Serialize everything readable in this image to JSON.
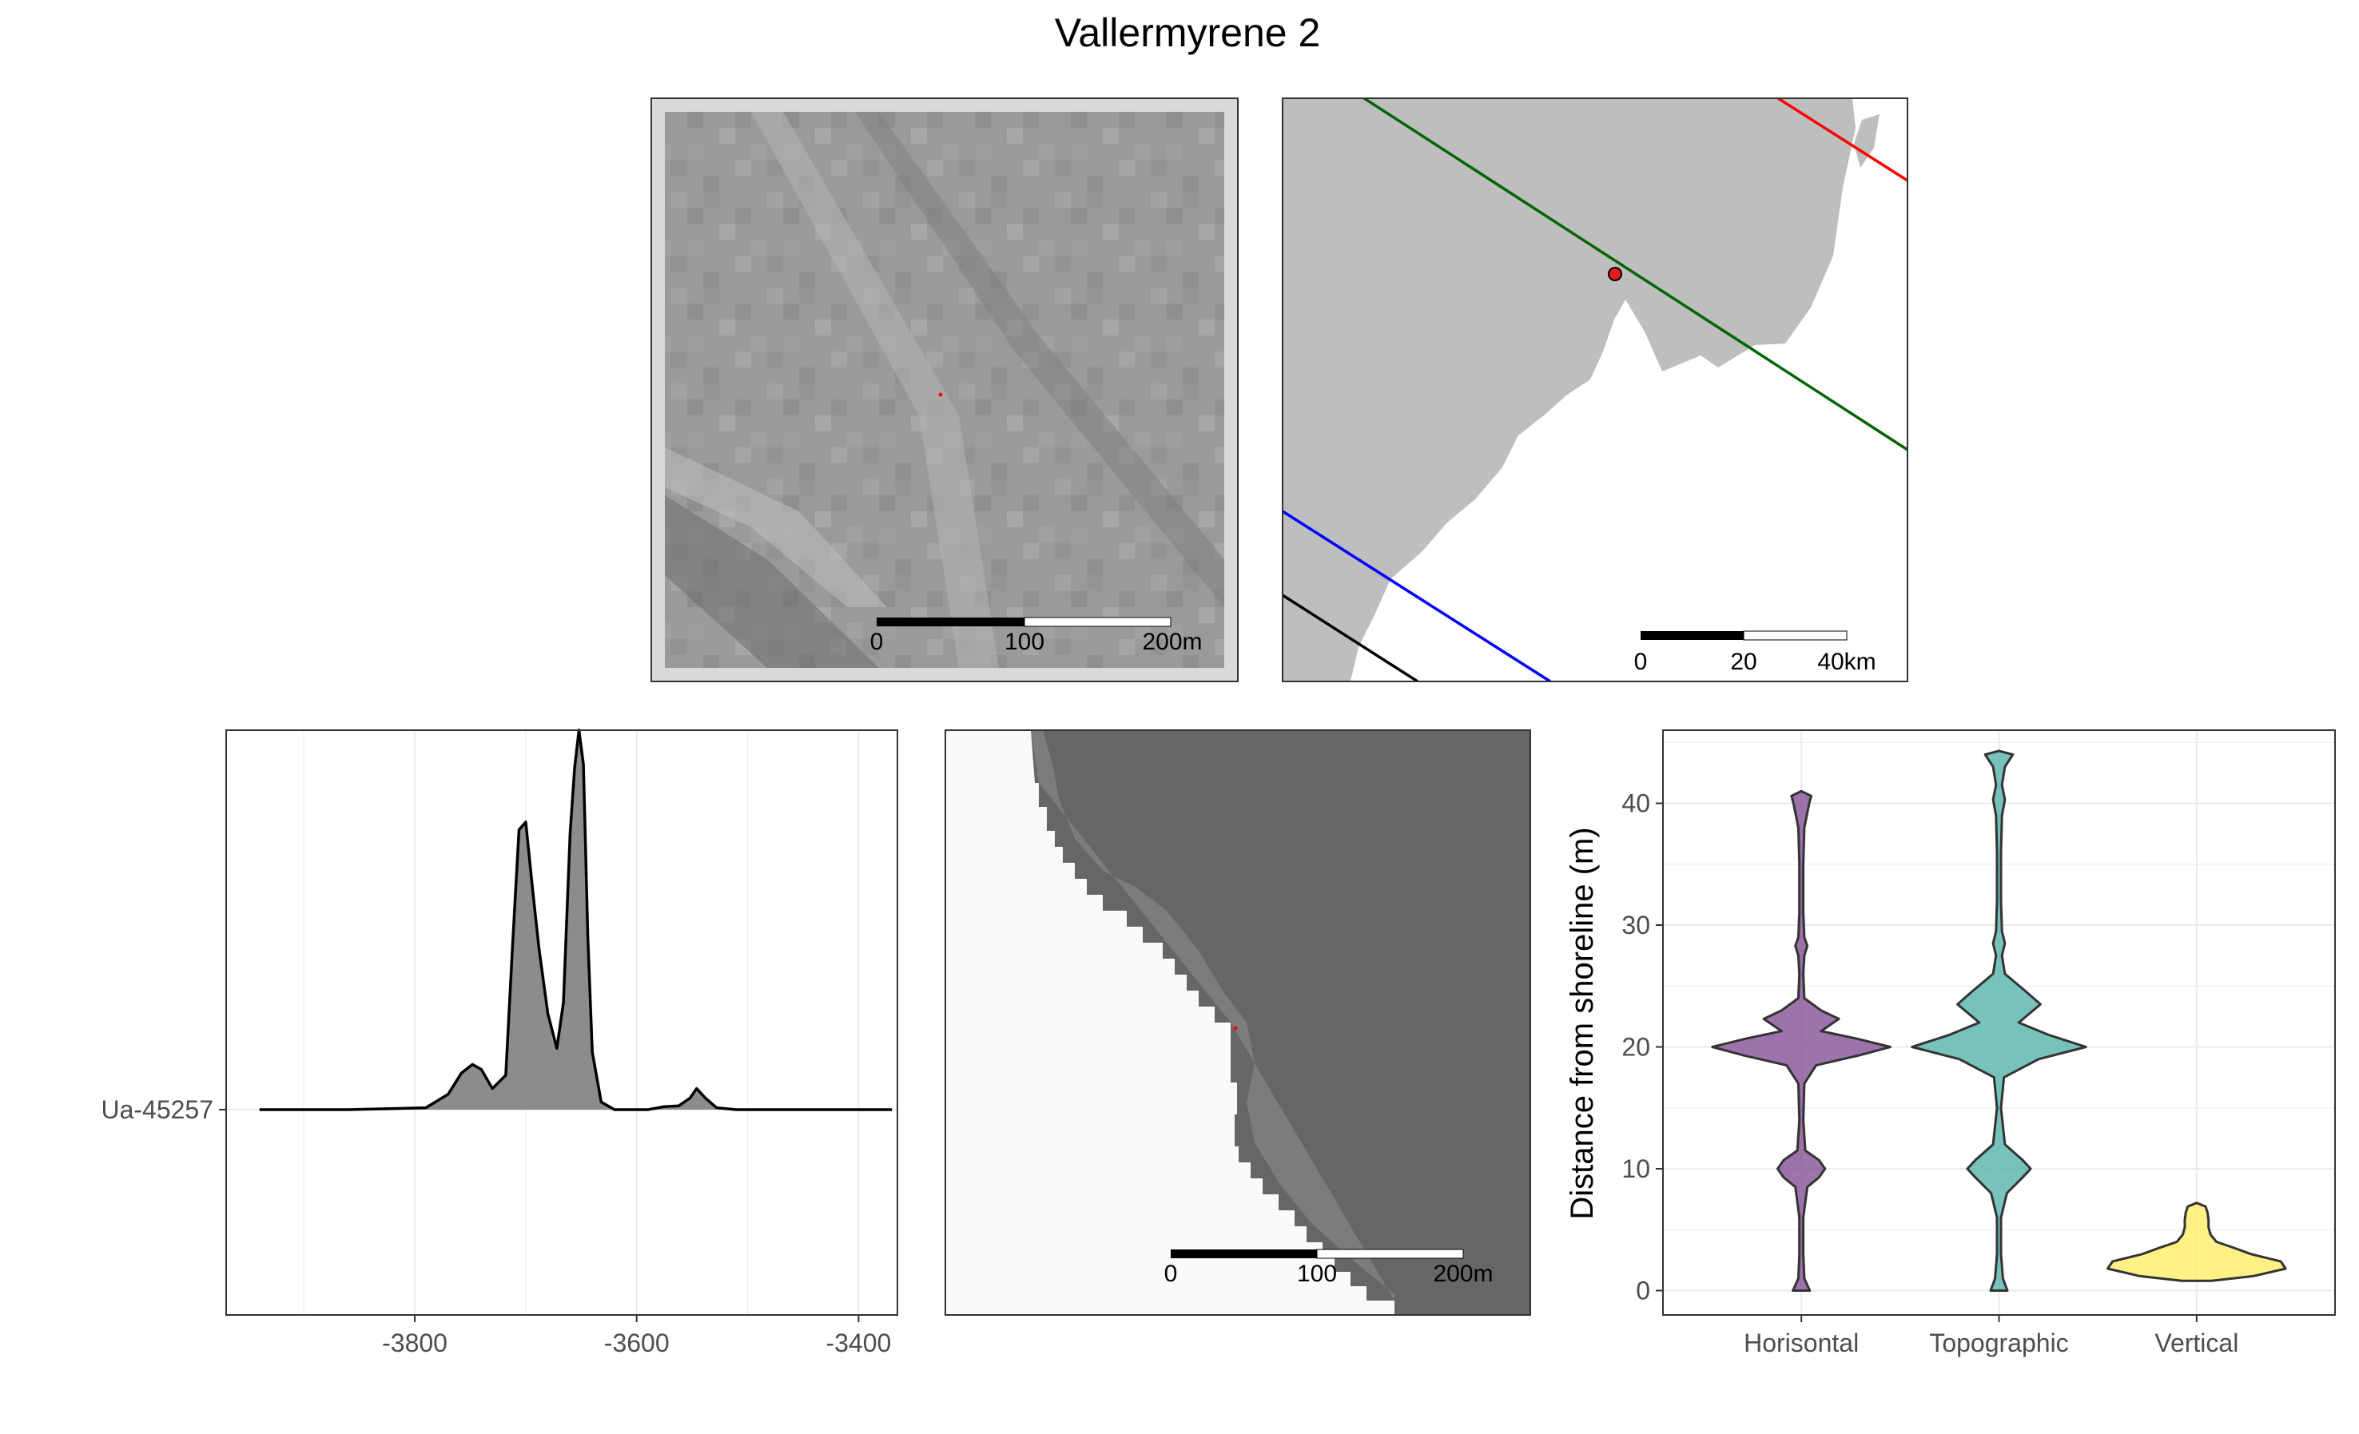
{
  "figure_title": "Vallermyrene 2",
  "panels": {
    "elevation_map": {
      "scale_labels": [
        "0",
        "100",
        "200m"
      ],
      "frame_color": "#d9d9d9",
      "site_point_color": "#ff0000"
    },
    "regional_map": {
      "scale_labels": [
        "0",
        "20",
        "40km"
      ],
      "land_color": "#bebebe",
      "site_point_color": "#e31a1c",
      "isobase_colors": [
        "#ff0000",
        "#006400",
        "#0000ff",
        "#000000"
      ]
    },
    "shoreline_map": {
      "scale_labels": [
        "0",
        "100",
        "200m"
      ],
      "sea_color": "#fafafa",
      "land_color": "#666666"
    }
  },
  "chart_data": [
    {
      "type": "area",
      "panel": "radiocarbon_density",
      "title": "",
      "xlabel": "",
      "ylabel": "",
      "xlim": [
        -3970,
        -3365
      ],
      "x_ticks": [
        -3800,
        -3600,
        -3400
      ],
      "x_tick_labels": [
        "-3800",
        "-3600",
        "-3400"
      ],
      "y_categories": [
        "Ua-45257"
      ],
      "grid": true,
      "fill_color": "#8c8c8c",
      "series": [
        {
          "x": [
            -3940,
            -3860,
            -3790,
            -3770,
            -3758,
            -3748,
            -3740,
            -3730,
            -3718,
            -3712,
            -3706,
            -3700,
            -3694,
            -3688,
            -3680,
            -3672,
            -3666,
            -3660,
            -3656,
            -3652,
            -3648,
            -3644,
            -3640,
            -3632,
            -3620,
            -3590,
            -3575,
            -3562,
            -3552,
            -3546,
            -3538,
            -3528,
            -3510,
            -3440,
            -3370
          ],
          "values": [
            0,
            0,
            0.005,
            0.04,
            0.095,
            0.118,
            0.105,
            0.055,
            0.09,
            0.42,
            0.73,
            0.75,
            0.58,
            0.42,
            0.25,
            0.16,
            0.28,
            0.72,
            0.89,
            0.99,
            0.9,
            0.45,
            0.15,
            0.02,
            0.0,
            0.0,
            0.008,
            0.01,
            0.03,
            0.055,
            0.03,
            0.005,
            0,
            0,
            0
          ]
        }
      ]
    },
    {
      "type": "violin",
      "panel": "shoreline_distance",
      "title": "",
      "xlabel": "",
      "ylabel": "Distance from shoreline (m)",
      "categories": [
        "Horisontal",
        "Topographic",
        "Vertical"
      ],
      "ylim": [
        -2,
        46
      ],
      "y_ticks": [
        0,
        10,
        20,
        30,
        40
      ],
      "grid": true,
      "series": [
        {
          "color": "#8c5a9c",
          "y": [
            0,
            1,
            3,
            6,
            8.5,
            9.3,
            10,
            10.7,
            11.5,
            14,
            17,
            18.5,
            19.3,
            20,
            20.7,
            21.3,
            22.3,
            23,
            24,
            26,
            27.5,
            28.3,
            29,
            31,
            35,
            38,
            40,
            40.6,
            41
          ],
          "half_width": [
            0.085,
            0.03,
            0.02,
            0.02,
            0.06,
            0.18,
            0.24,
            0.18,
            0.04,
            0.02,
            0.03,
            0.15,
            0.58,
            0.9,
            0.55,
            0.2,
            0.38,
            0.2,
            0.03,
            0.02,
            0.03,
            0.06,
            0.03,
            0.02,
            0.02,
            0.03,
            0.08,
            0.1,
            0.0
          ]
        },
        {
          "color": "#5fb8b0",
          "y": [
            0,
            1,
            3,
            6,
            8,
            9.3,
            10,
            10.7,
            12,
            15,
            17.5,
            19,
            20,
            21,
            22,
            23.5,
            24.5,
            26,
            27.5,
            28.5,
            29.5,
            32,
            36,
            39,
            40.3,
            41.5,
            43,
            44,
            44.3
          ],
          "half_width": [
            0.085,
            0.04,
            0.02,
            0.02,
            0.08,
            0.24,
            0.32,
            0.24,
            0.06,
            0.02,
            0.05,
            0.4,
            0.88,
            0.5,
            0.2,
            0.42,
            0.28,
            0.06,
            0.03,
            0.06,
            0.03,
            0.02,
            0.02,
            0.03,
            0.06,
            0.03,
            0.06,
            0.14,
            0.0
          ]
        },
        {
          "color": "#ffee70",
          "y": [
            0.8,
            1.2,
            1.8,
            2.4,
            3,
            3.5,
            4,
            4.6,
            5.2,
            5.8,
            6.4,
            6.9,
            7.2
          ],
          "half_width": [
            0.15,
            0.58,
            0.9,
            0.85,
            0.55,
            0.38,
            0.2,
            0.14,
            0.12,
            0.12,
            0.11,
            0.09,
            0.0
          ]
        }
      ]
    }
  ]
}
